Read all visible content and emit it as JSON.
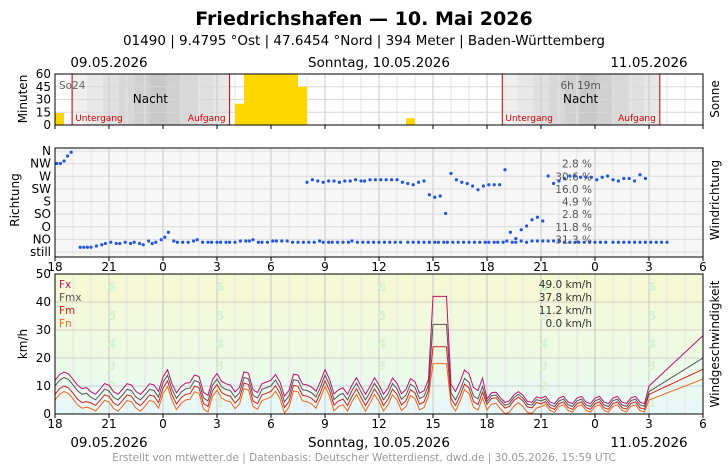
{
  "header": {
    "title": "Friedrichshafen  —  10. Mai 2026",
    "subtitle": "01490  |  9.4795 °Ost  |  47.6454 °Nord  |  394 Meter  |  Baden-Württemberg"
  },
  "dates": {
    "left": "09.05.2026",
    "center": "Sonntag, 10.05.2026",
    "right": "11.05.2026"
  },
  "footer": "Erstellt von mtwetter.de | Datenbasis: Deutscher Wetterdienst, dwd.de | 30.05.2026, 15:59 UTC",
  "x_ticks": [
    "18",
    "21",
    "0",
    "3",
    "6",
    "9",
    "12",
    "15",
    "18",
    "21",
    "0",
    "3",
    "6"
  ],
  "colors": {
    "sun": "#FFD700",
    "direction": "#2255dd",
    "fx": "#c0106a",
    "fmx": "#555555",
    "fm": "#d02020",
    "fn": "#ee6622",
    "night_line": "#cc0000"
  },
  "chart_data": [
    {
      "type": "bar",
      "panel": "sunshine",
      "ylabel": "Minuten",
      "right_label": "Sonne",
      "y_ticks": [
        "0",
        "15",
        "30",
        "45",
        "60"
      ],
      "ylim": [
        0,
        60
      ],
      "x_start_hour": 18,
      "hours": 36,
      "values": [
        14,
        0,
        0,
        0,
        0,
        0,
        0,
        0,
        0,
        0,
        0,
        0,
        0,
        0,
        0,
        0,
        0,
        0,
        0,
        0,
        25,
        60,
        60,
        60,
        60,
        60,
        60,
        45,
        0,
        0,
        0,
        0,
        0,
        0,
        0,
        0,
        0,
        0,
        0,
        8,
        0,
        0,
        0,
        0,
        0,
        0,
        0,
        0,
        0,
        0,
        0,
        0,
        0,
        0,
        0,
        0,
        0,
        0,
        0,
        0,
        0,
        0,
        0,
        0,
        0,
        0,
        0,
        0,
        0,
        0,
        0,
        0
      ],
      "night_label": "Nacht",
      "annotations": {
        "day_total_left": "So24",
        "day_total_right": "6h 19m",
        "sunset": "Untergang",
        "sunrise": "Aufgang"
      }
    },
    {
      "type": "scatter",
      "panel": "wind_direction",
      "ylabel": "Richtung",
      "right_label": "Windrichtung",
      "y_categories": [
        "N",
        "NW",
        "W",
        "SW",
        "S",
        "SO",
        "O",
        "NO",
        "still"
      ],
      "x_start_hour": 18,
      "hours": 36,
      "points": [
        [
          0.1,
          7
        ],
        [
          0.3,
          7
        ],
        [
          0.5,
          7.2
        ],
        [
          0.7,
          7.6
        ],
        [
          0.9,
          7.9
        ],
        [
          1.4,
          0.3
        ],
        [
          1.6,
          0.3
        ],
        [
          1.8,
          0.3
        ],
        [
          2.0,
          0.3
        ],
        [
          2.3,
          0.4
        ],
        [
          2.6,
          0.5
        ],
        [
          2.8,
          0.6
        ],
        [
          3.1,
          0.7
        ],
        [
          3.4,
          0.6
        ],
        [
          3.6,
          0.6
        ],
        [
          3.9,
          0.7
        ],
        [
          4.2,
          0.6
        ],
        [
          4.4,
          0.7
        ],
        [
          4.7,
          0.6
        ],
        [
          4.9,
          0.5
        ],
        [
          5.2,
          0.8
        ],
        [
          5.4,
          0.6
        ],
        [
          5.6,
          0.7
        ],
        [
          5.9,
          0.9
        ],
        [
          6.1,
          1.1
        ],
        [
          6.3,
          1.5
        ],
        [
          6.6,
          0.8
        ],
        [
          6.8,
          0.7
        ],
        [
          7.1,
          0.7
        ],
        [
          7.4,
          0.7
        ],
        [
          7.7,
          0.8
        ],
        [
          7.9,
          0.9
        ],
        [
          8.2,
          0.7
        ],
        [
          8.5,
          0.7
        ],
        [
          8.7,
          0.7
        ],
        [
          9.0,
          0.7
        ],
        [
          9.2,
          0.7
        ],
        [
          9.5,
          0.7
        ],
        [
          9.7,
          0.7
        ],
        [
          10.0,
          0.7
        ],
        [
          10.3,
          0.8
        ],
        [
          10.6,
          0.8
        ],
        [
          10.8,
          0.8
        ],
        [
          11.0,
          0.9
        ],
        [
          11.3,
          0.7
        ],
        [
          11.5,
          0.7
        ],
        [
          11.8,
          0.7
        ],
        [
          12.1,
          0.8
        ],
        [
          12.3,
          0.8
        ],
        [
          12.6,
          0.8
        ],
        [
          12.9,
          0.8
        ],
        [
          13.2,
          0.7
        ],
        [
          13.5,
          0.7
        ],
        [
          13.8,
          0.7
        ],
        [
          14.1,
          0.7
        ],
        [
          14.4,
          0.7
        ],
        [
          14.7,
          0.8
        ],
        [
          14.9,
          0.7
        ],
        [
          15.2,
          0.7
        ],
        [
          15.4,
          0.7
        ],
        [
          15.7,
          0.7
        ],
        [
          16.0,
          0.7
        ],
        [
          16.3,
          0.7
        ],
        [
          16.5,
          0.8
        ],
        [
          16.8,
          0.7
        ],
        [
          17.1,
          0.7
        ],
        [
          17.4,
          0.7
        ],
        [
          17.7,
          0.7
        ],
        [
          18.0,
          0.7
        ],
        [
          18.3,
          0.7
        ],
        [
          18.6,
          0.7
        ],
        [
          18.9,
          0.7
        ],
        [
          19.2,
          0.7
        ],
        [
          19.6,
          0.7
        ],
        [
          19.9,
          0.7
        ],
        [
          20.2,
          0.7
        ],
        [
          20.5,
          0.7
        ],
        [
          20.8,
          0.7
        ],
        [
          21.1,
          0.7
        ],
        [
          21.3,
          0.7
        ],
        [
          21.6,
          0.7
        ],
        [
          21.8,
          0.7
        ],
        [
          22.1,
          0.7
        ],
        [
          22.4,
          0.7
        ],
        [
          22.7,
          0.7
        ],
        [
          23.0,
          0.7
        ],
        [
          23.3,
          0.7
        ],
        [
          23.6,
          0.7
        ],
        [
          23.9,
          0.7
        ],
        [
          24.1,
          0.7
        ],
        [
          24.4,
          0.7
        ],
        [
          24.6,
          0.7
        ],
        [
          24.9,
          0.7
        ],
        [
          25.1,
          0.8
        ],
        [
          25.4,
          0.7
        ],
        [
          25.6,
          0.7
        ],
        [
          25.9,
          0.8
        ],
        [
          26.2,
          0.7
        ],
        [
          26.5,
          0.8
        ],
        [
          26.8,
          0.8
        ],
        [
          27.1,
          0.8
        ],
        [
          27.4,
          0.8
        ],
        [
          27.7,
          0.8
        ],
        [
          28.0,
          0.8
        ],
        [
          28.3,
          0.7
        ],
        [
          28.6,
          0.7
        ],
        [
          28.9,
          0.7
        ],
        [
          29.1,
          0.7
        ],
        [
          29.4,
          0.7
        ],
        [
          29.7,
          0.7
        ],
        [
          30.0,
          0.7
        ],
        [
          30.3,
          0.7
        ],
        [
          30.6,
          0.7
        ],
        [
          31.0,
          0.7
        ],
        [
          31.3,
          0.7
        ],
        [
          31.6,
          0.7
        ],
        [
          31.9,
          0.7
        ],
        [
          32.2,
          0.7
        ],
        [
          32.5,
          0.7
        ],
        [
          32.8,
          0.7
        ],
        [
          33.1,
          0.7
        ],
        [
          33.4,
          0.7
        ],
        [
          33.7,
          0.7
        ],
        [
          34.0,
          0.7
        ]
      ],
      "legend": [
        {
          "label": "2.8 %"
        },
        {
          "label": "30.6 %"
        },
        {
          "label": "16.0 %"
        },
        {
          "label": "4.9 %"
        },
        {
          "label": "2.8 %"
        },
        {
          "label": "11.8 %"
        },
        {
          "label": "31.3 %"
        }
      ]
    },
    {
      "type": "line",
      "panel": "wind_speed",
      "ylabel": "km/h",
      "right_label": "Windgeschwindigkeit",
      "y_ticks": [
        "0",
        "10",
        "20",
        "30",
        "40",
        "50"
      ],
      "ylim": [
        0,
        50
      ],
      "x_start_hour": 18,
      "hours": 36,
      "beaufort_labels": [
        "1",
        "2",
        "3",
        "4",
        "5",
        "6"
      ],
      "series": [
        {
          "name": "Fx",
          "summary": "49.0 km/h"
        },
        {
          "name": "Fmx",
          "summary": "37.8 km/h"
        },
        {
          "name": "Fm",
          "summary": "11.2 km/h"
        },
        {
          "name": "Fn",
          "summary": "0.0 km/h"
        }
      ]
    }
  ]
}
